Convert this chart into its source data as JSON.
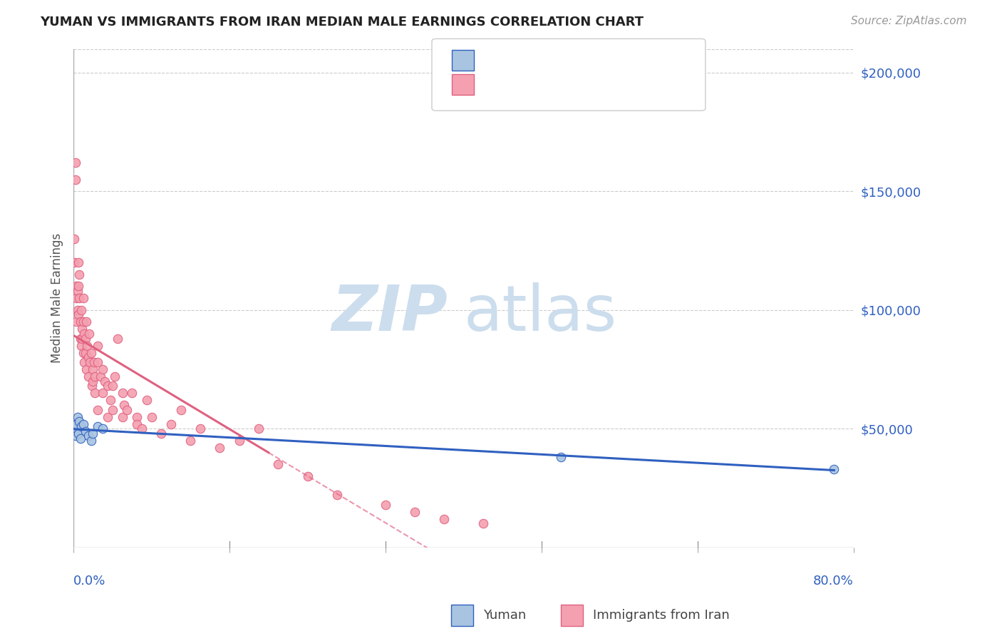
{
  "title": "YUMAN VS IMMIGRANTS FROM IRAN MEDIAN MALE EARNINGS CORRELATION CHART",
  "source": "Source: ZipAtlas.com",
  "ylabel": "Median Male Earnings",
  "right_yticks": [
    "$200,000",
    "$150,000",
    "$100,000",
    "$50,000"
  ],
  "right_ytick_vals": [
    200000,
    150000,
    100000,
    50000
  ],
  "yuman_color": "#a8c4e0",
  "iran_color": "#f4a0b0",
  "yuman_line_color": "#3060c0",
  "iran_line_color": "#e06080",
  "background_color": "#ffffff",
  "yuman_x": [
    0.001,
    0.002,
    0.003,
    0.004,
    0.005,
    0.006,
    0.007,
    0.008,
    0.01,
    0.012,
    0.015,
    0.018,
    0.02,
    0.025,
    0.03,
    0.5,
    0.78
  ],
  "yuman_y": [
    50000,
    47000,
    52000,
    55000,
    48000,
    53000,
    46000,
    51000,
    52000,
    49000,
    47000,
    45000,
    48000,
    51000,
    50000,
    38000,
    33000
  ],
  "iran_x": [
    0.001,
    0.001,
    0.002,
    0.002,
    0.003,
    0.003,
    0.003,
    0.004,
    0.004,
    0.005,
    0.005,
    0.005,
    0.006,
    0.006,
    0.007,
    0.007,
    0.008,
    0.008,
    0.009,
    0.009,
    0.01,
    0.01,
    0.01,
    0.011,
    0.011,
    0.012,
    0.012,
    0.013,
    0.013,
    0.014,
    0.015,
    0.015,
    0.016,
    0.017,
    0.018,
    0.019,
    0.02,
    0.02,
    0.021,
    0.022,
    0.022,
    0.025,
    0.025,
    0.025,
    0.028,
    0.03,
    0.03,
    0.032,
    0.035,
    0.035,
    0.038,
    0.04,
    0.04,
    0.042,
    0.045,
    0.05,
    0.05,
    0.052,
    0.055,
    0.06,
    0.065,
    0.065,
    0.07,
    0.075,
    0.08,
    0.09,
    0.1,
    0.11,
    0.12,
    0.13,
    0.15,
    0.17,
    0.19,
    0.21,
    0.24,
    0.27,
    0.32,
    0.35,
    0.38,
    0.42
  ],
  "iran_y": [
    130000,
    120000,
    155000,
    162000,
    110000,
    105000,
    95000,
    108000,
    100000,
    120000,
    110000,
    98000,
    115000,
    105000,
    88000,
    95000,
    100000,
    85000,
    92000,
    88000,
    105000,
    95000,
    82000,
    90000,
    78000,
    88000,
    82000,
    95000,
    75000,
    85000,
    80000,
    72000,
    90000,
    78000,
    82000,
    68000,
    75000,
    70000,
    78000,
    65000,
    72000,
    85000,
    78000,
    58000,
    72000,
    75000,
    65000,
    70000,
    68000,
    55000,
    62000,
    68000,
    58000,
    72000,
    88000,
    65000,
    55000,
    60000,
    58000,
    65000,
    55000,
    52000,
    50000,
    62000,
    55000,
    48000,
    52000,
    58000,
    45000,
    50000,
    42000,
    45000,
    50000,
    35000,
    30000,
    22000,
    18000,
    15000,
    12000,
    10000
  ],
  "xlim": [
    0.0,
    0.8
  ],
  "ylim": [
    0,
    210000
  ]
}
